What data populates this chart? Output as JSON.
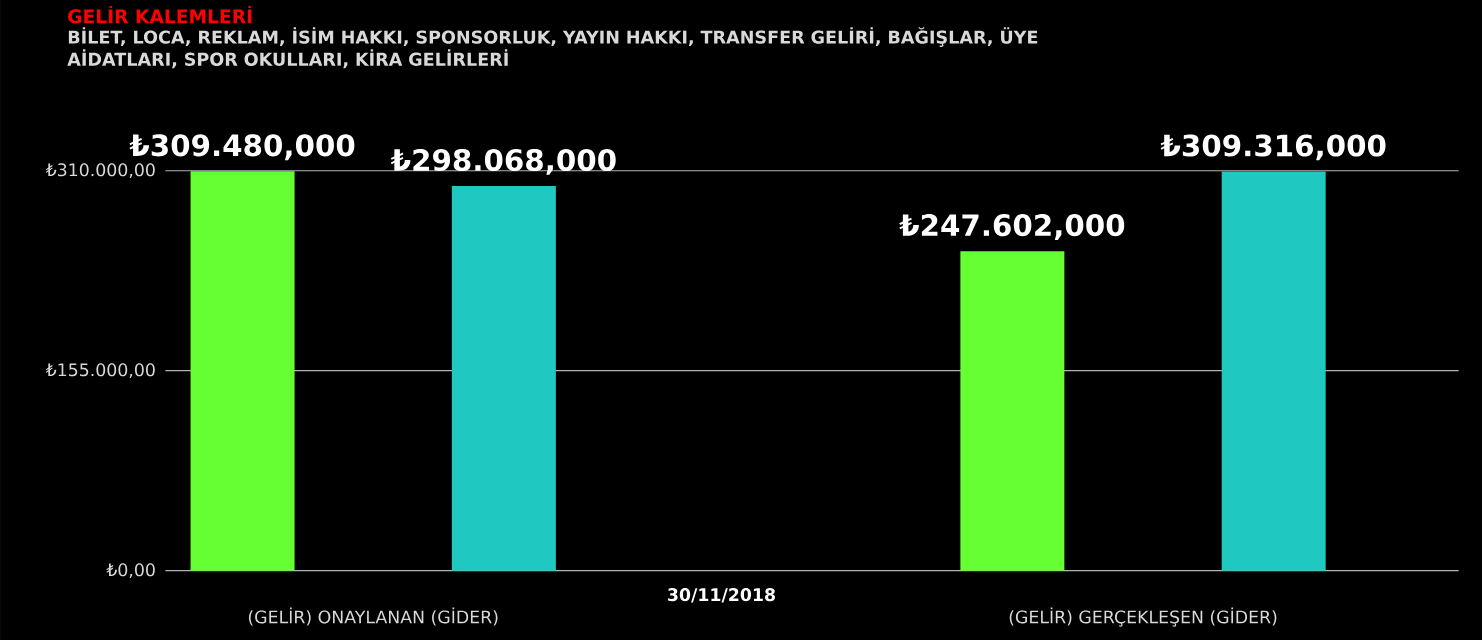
{
  "chart_data": {
    "type": "bar",
    "title": "GELİR KALEMLERİ",
    "subtitle": "BİLET, LOCA, REKLAM, İSİM HAKKI, SPONSORLUK, YAYIN HAKKI, TRANSFER GELİRİ, BAĞIŞLAR, ÜYE AİDATLARI, SPOR OKULLARI, KİRA GELİRLERİ",
    "xlabel": "30/11/2018",
    "categories": [
      "(GELİR) ONAYLANAN (GİDER)",
      "(GELİR) GERÇEKLEŞEN (GİDER)"
    ],
    "series": [
      {
        "color": "#66ff33",
        "values": [
          309480,
          247602
        ],
        "value_labels": [
          "₺309.480,000",
          "₺247.602,000"
        ]
      },
      {
        "color": "#1fc8c0",
        "values": [
          298068,
          309316
        ],
        "value_labels": [
          "₺298.068,000",
          "₺309.316,000"
        ]
      }
    ],
    "ylim": [
      0,
      310000
    ],
    "yticks": [
      {
        "value": 0,
        "label": "₺0,00"
      },
      {
        "value": 155000,
        "label": "₺155.000,00"
      },
      {
        "value": 310000,
        "label": "₺310.000,00"
      }
    ],
    "grid": "y"
  }
}
